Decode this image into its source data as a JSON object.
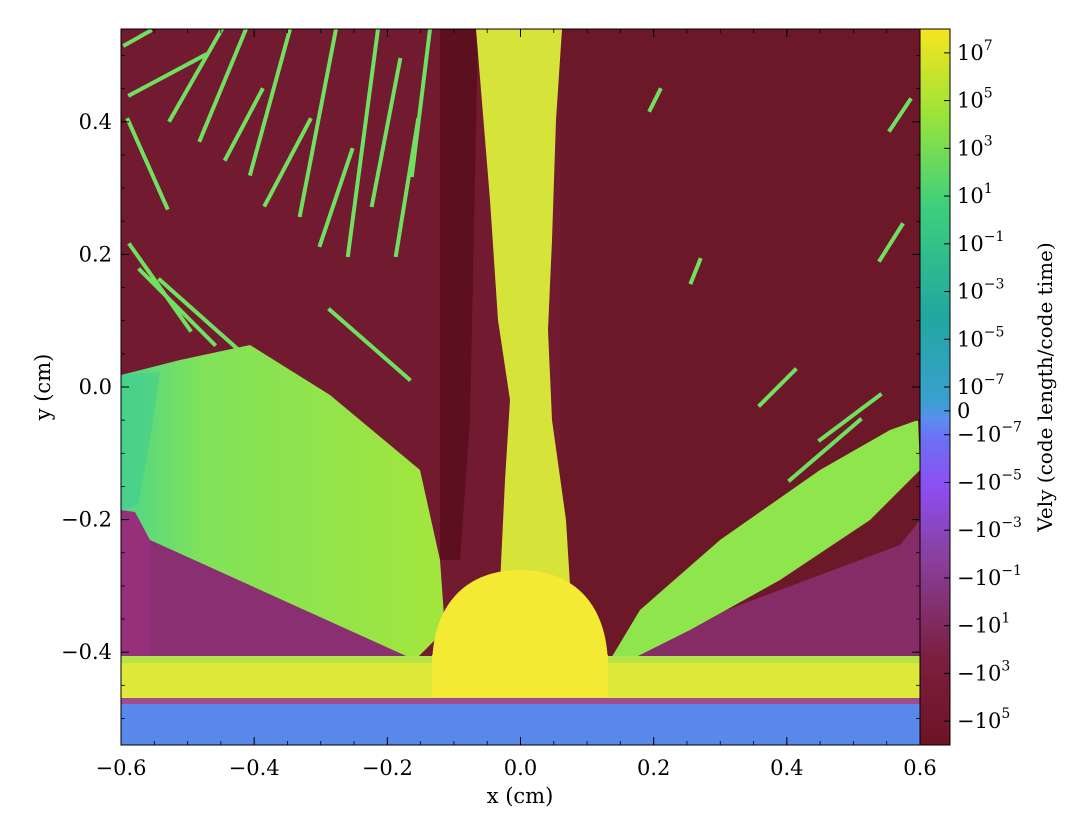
{
  "chart_data": {
    "type": "heatmap",
    "title": "",
    "xlabel": "x  (cm)",
    "ylabel": "y  (cm)",
    "xlim": [
      -0.6,
      0.6
    ],
    "ylim": [
      -0.54,
      0.54
    ],
    "x_ticks": [
      -0.6,
      -0.4,
      -0.2,
      0.0,
      0.2,
      0.4,
      0.6
    ],
    "x_tick_labels": [
      "−0.6",
      "−0.4",
      "−0.2",
      "0.0",
      "0.2",
      "0.4",
      "0.6"
    ],
    "y_ticks": [
      -0.4,
      -0.2,
      0.0,
      0.2,
      0.4
    ],
    "y_tick_labels": [
      "−0.4",
      "−0.2",
      "0.0",
      "0.2",
      "0.4"
    ],
    "colorbar": {
      "label": "Vely  (code length/code time)",
      "scale": "symlog",
      "range": [
        -1000000,
        100000000
      ],
      "ticks": [
        {
          "pos": 7,
          "base": "10",
          "exp": "7",
          "sign": ""
        },
        {
          "pos": 5,
          "base": "10",
          "exp": "5",
          "sign": ""
        },
        {
          "pos": 3,
          "base": "10",
          "exp": "3",
          "sign": ""
        },
        {
          "pos": 1,
          "base": "10",
          "exp": "1",
          "sign": ""
        },
        {
          "pos": -1,
          "base": "10",
          "exp": "−1",
          "sign": ""
        },
        {
          "pos": -3,
          "base": "10",
          "exp": "−3",
          "sign": ""
        },
        {
          "pos": -5,
          "base": "10",
          "exp": "−5",
          "sign": ""
        },
        {
          "pos": -7,
          "base": "10",
          "exp": "−7",
          "sign": ""
        },
        {
          "pos": -8,
          "base": "0",
          "exp": "",
          "sign": ""
        },
        {
          "pos": -9,
          "base": "10",
          "exp": "−7",
          "sign": "−"
        },
        {
          "pos": -11,
          "base": "10",
          "exp": "−5",
          "sign": "−"
        },
        {
          "pos": -13,
          "base": "10",
          "exp": "−3",
          "sign": "−"
        },
        {
          "pos": -15,
          "base": "10",
          "exp": "−1",
          "sign": "−"
        },
        {
          "pos": -17,
          "base": "10",
          "exp": "1",
          "sign": "−"
        },
        {
          "pos": -19,
          "base": "10",
          "exp": "3",
          "sign": "−"
        },
        {
          "pos": -21,
          "base": "10",
          "exp": "5",
          "sign": "−"
        }
      ],
      "colors": {
        "top": "#f7e51f",
        "pos_high": "#9be33a",
        "pos_mid": "#3ccf7e",
        "pos_low": "#22a7a0",
        "zero": "#5b8ef0",
        "neg_low": "#8c4ef3",
        "neg_mid": "#8a3f9c",
        "neg_high": "#7a1f3e",
        "bottom": "#6e1324"
      }
    },
    "field": {
      "description_values": "Vely field: background downward (negative) flow, upward jets and lobes",
      "colors": {
        "background": "#711a30",
        "background_dark": "#5e1020",
        "background_side": "#8a3072",
        "jet": "#d6e43a",
        "lobe": "#8fe64c",
        "streak": "#70e060",
        "dome": "#f4ea33",
        "layer": "#dde838",
        "base": "#5888ea"
      }
    }
  }
}
